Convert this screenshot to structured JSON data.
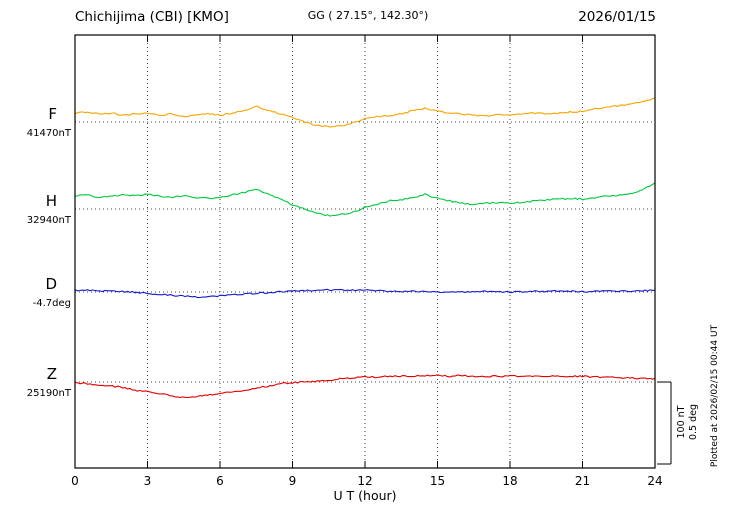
{
  "header": {
    "title": "Chichijima (CBI)  [KMO]",
    "coordinates": "GG ( 27.15°, 142.30°)",
    "date": "2026/01/15"
  },
  "footer": {
    "plotted_note": "Plotted at 2026/02/15 00:44 UT"
  },
  "chart_data": {
    "type": "line",
    "title": "Chichijima (CBI) [KMO] magnetogram",
    "xlabel": "U T (hour)",
    "xlim": [
      0,
      24
    ],
    "x_ticks": [
      0,
      3,
      6,
      9,
      12,
      15,
      18,
      21,
      24
    ],
    "x_start": 0,
    "x_step": 0.5,
    "grid": "dotted-vertical-every-3h",
    "legend_position": "left-of-axis",
    "scale": {
      "nT_label": "100 nT",
      "deg_label": "0.5 deg",
      "nT_value": 100,
      "deg_value": 0.5
    },
    "series": [
      {
        "name": "F",
        "color": "#f5a400",
        "unit": "nT",
        "baseline_numeric": 41470,
        "baseline_value_label": "41470nT",
        "values": [
          11,
          12,
          10,
          11,
          8,
          10,
          11,
          8,
          10,
          7,
          8,
          10,
          8,
          11,
          14,
          19,
          14,
          10,
          5,
          0,
          -4,
          -6,
          -5,
          -1,
          4,
          7,
          7,
          10,
          14,
          17,
          13,
          11,
          10,
          8,
          7,
          10,
          8,
          10,
          11,
          10,
          11,
          12,
          13,
          16,
          18,
          20,
          22,
          25,
          29
        ]
      },
      {
        "name": "H",
        "color": "#00c840",
        "unit": "nT",
        "baseline_numeric": 32940,
        "baseline_value_label": "32940nT",
        "values": [
          16,
          17,
          14,
          16,
          17,
          16,
          18,
          16,
          14,
          16,
          14,
          13,
          14,
          17,
          20,
          24,
          19,
          12,
          5,
          0,
          -5,
          -8,
          -7,
          -4,
          2,
          6,
          10,
          11,
          14,
          18,
          13,
          10,
          7,
          5,
          7,
          8,
          7,
          8,
          10,
          11,
          12,
          13,
          12,
          14,
          16,
          17,
          18,
          24,
          31
        ]
      },
      {
        "name": "D",
        "color": "#1818cc",
        "unit": "deg",
        "baseline_numeric": -4.7,
        "baseline_value_label": "-4.7deg",
        "values": [
          0.012,
          0.01,
          0.008,
          0.005,
          0.002,
          -0.002,
          -0.008,
          -0.014,
          -0.02,
          -0.026,
          -0.03,
          -0.028,
          -0.024,
          -0.018,
          -0.012,
          -0.008,
          -0.004,
          0.0,
          0.004,
          0.008,
          0.01,
          0.012,
          0.012,
          0.012,
          0.01,
          0.008,
          0.004,
          0.002,
          0.004,
          0.002,
          0.0,
          0.002,
          0.0,
          0.002,
          0.004,
          0.002,
          0.0,
          0.002,
          0.004,
          0.004,
          0.006,
          0.004,
          0.002,
          0.004,
          0.006,
          0.004,
          0.006,
          0.008,
          0.01
        ]
      },
      {
        "name": "Z",
        "color": "#e00000",
        "unit": "nT",
        "baseline_numeric": 25190,
        "baseline_value_label": "25190nT",
        "values": [
          -1,
          -2,
          -4,
          -5,
          -7,
          -10,
          -12,
          -14,
          -17,
          -19,
          -18,
          -16,
          -14,
          -12,
          -10,
          -7,
          -5,
          -2,
          -1,
          0,
          1,
          2,
          4,
          5,
          6,
          6,
          7,
          7,
          7,
          8,
          8,
          7,
          8,
          7,
          7,
          7,
          7,
          7,
          7,
          7,
          7,
          7,
          7,
          6,
          6,
          5,
          5,
          4,
          4
        ]
      }
    ]
  }
}
